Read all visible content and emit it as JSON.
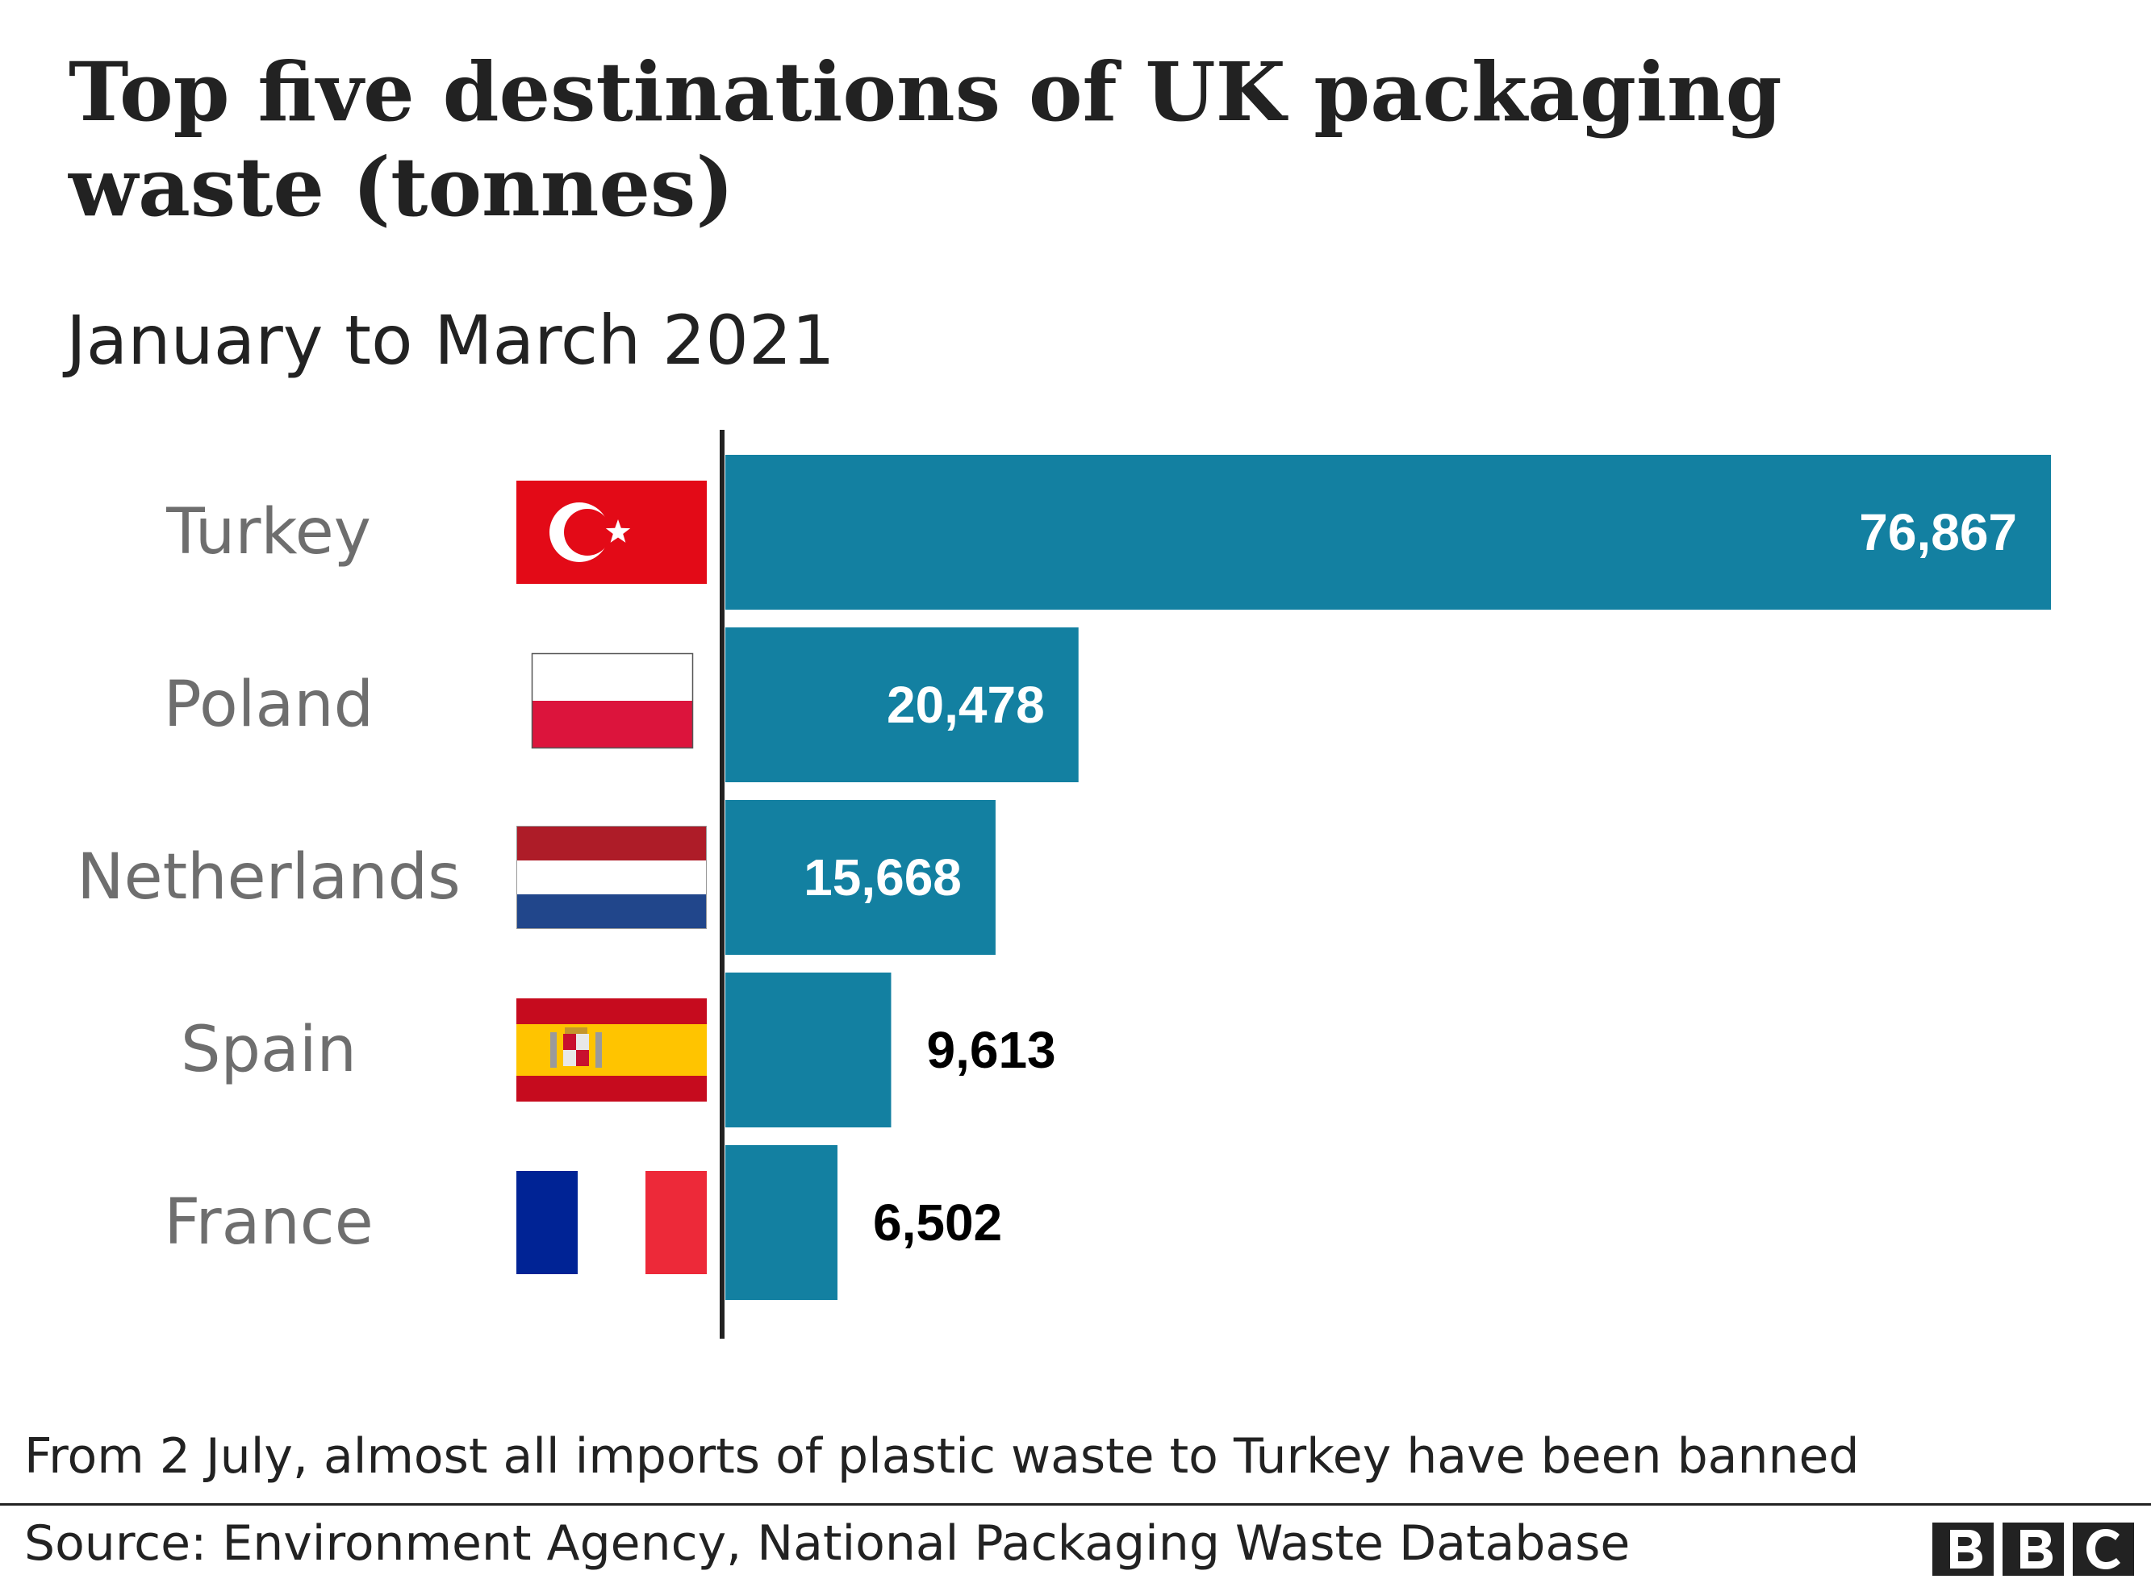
{
  "title": "Top five destinations of UK packaging waste (tonnes)",
  "subtitle": "January to March 2021",
  "note": "From 2 July, almost all imports of plastic waste to Turkey have been banned",
  "source": "Source: Environment Agency, National Packaging Waste Database",
  "logo": {
    "letters": [
      "B",
      "B",
      "C"
    ]
  },
  "colors": {
    "bar": "#1380a1",
    "axis": "#222222",
    "label_inside": "#ffffff",
    "label_outside": "#000000",
    "category": "#6e6e6e"
  },
  "chart_data": {
    "type": "bar",
    "orientation": "horizontal",
    "title": "Top five destinations of UK packaging waste (tonnes)",
    "subtitle": "January to March 2021",
    "categories": [
      "Turkey",
      "Poland",
      "Netherlands",
      "Spain",
      "France"
    ],
    "values": [
      76867,
      20478,
      15668,
      9613,
      6502
    ],
    "value_labels": [
      "76,867",
      "20,478",
      "15,668",
      "9,613",
      "6,502"
    ],
    "flags": [
      "turkey-flag-icon",
      "poland-flag-icon",
      "netherlands-flag-icon",
      "spain-flag-icon",
      "france-flag-icon"
    ],
    "xlim": [
      0,
      76867
    ],
    "grid": false,
    "legend": "none"
  }
}
